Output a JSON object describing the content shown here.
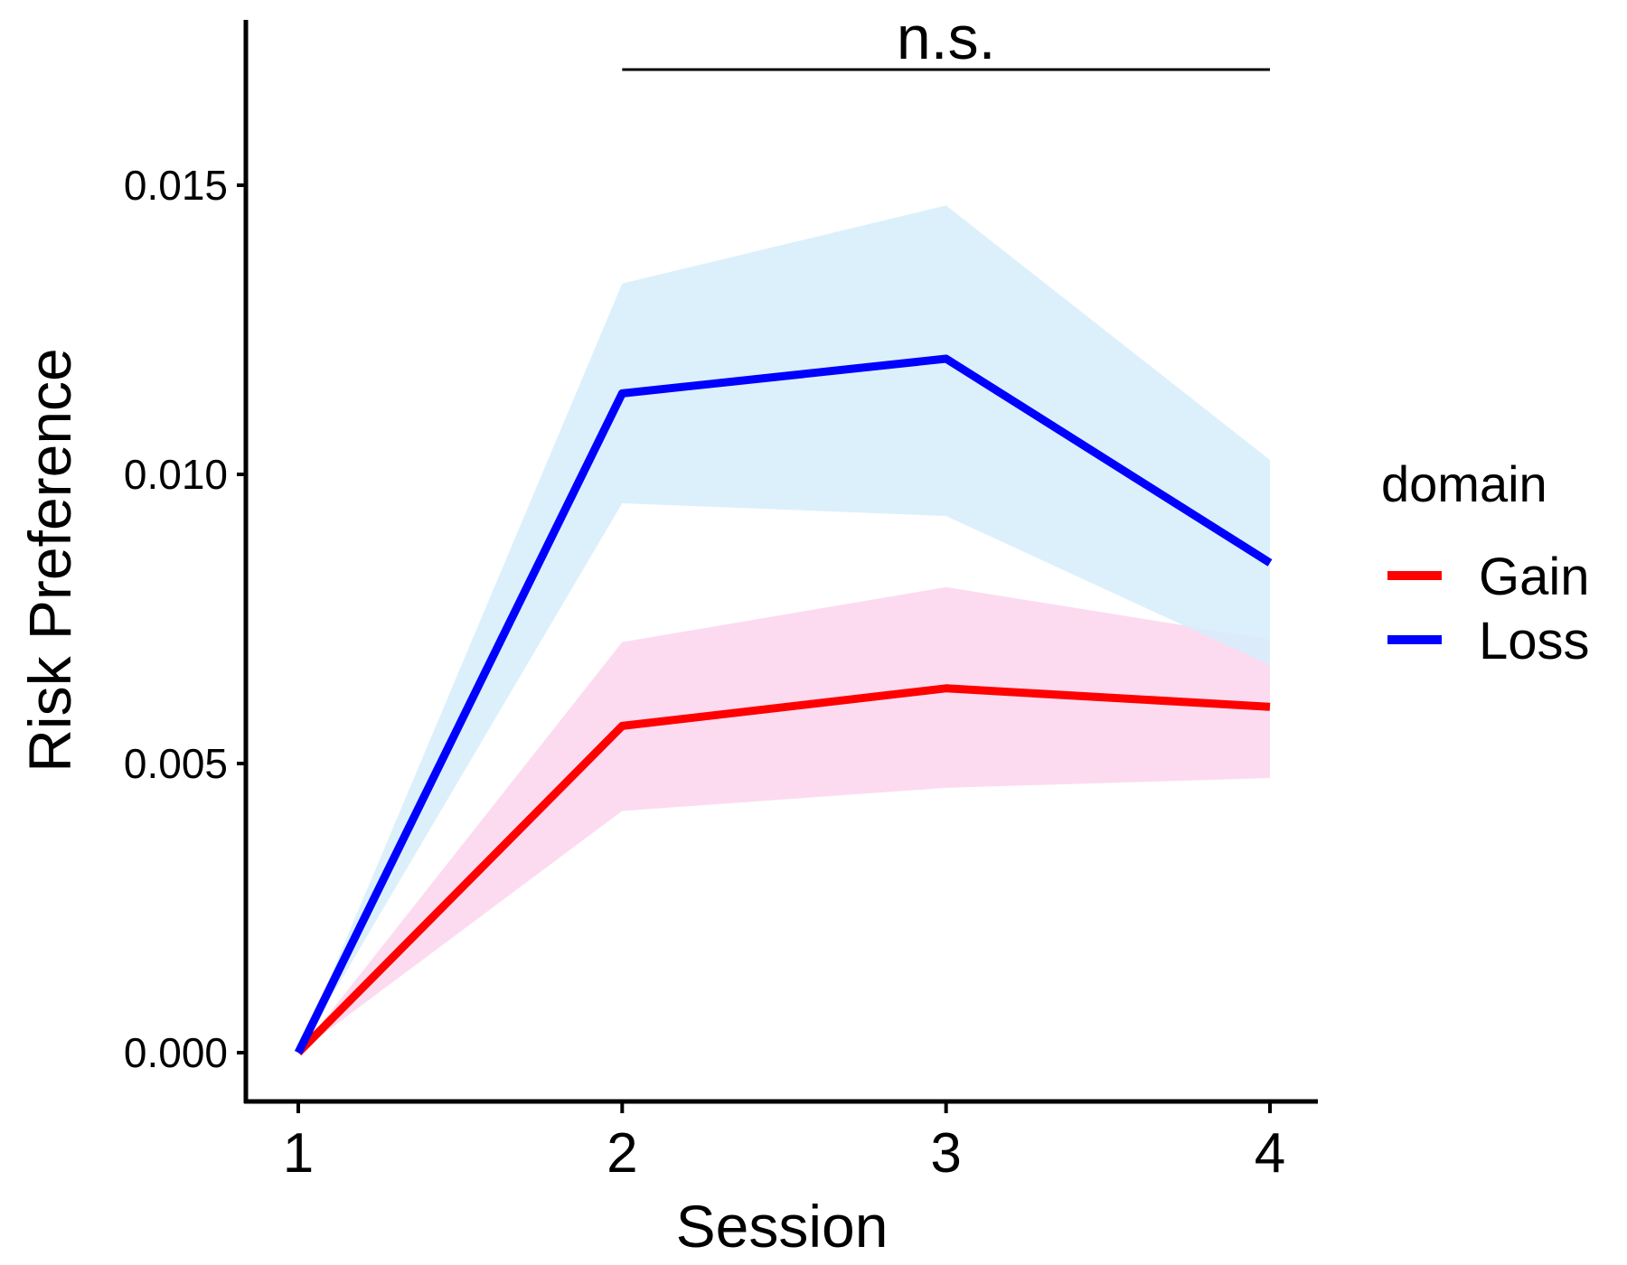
{
  "chart_data": {
    "type": "line",
    "xlabel": "Session",
    "ylabel": "Risk Preference",
    "x": [
      1,
      2,
      3,
      4
    ],
    "xticks": [
      "1",
      "2",
      "3",
      "4"
    ],
    "ylim": [
      -0.0009,
      0.0178
    ],
    "yticks": [
      0.0,
      0.005,
      0.01,
      0.015
    ],
    "ytick_labels": [
      "0.000",
      "0.005",
      "0.010",
      "0.015"
    ],
    "grid": false,
    "legend": {
      "title": "domain",
      "position": "right",
      "entries": [
        "Gain",
        "Loss"
      ]
    },
    "series": [
      {
        "name": "Gain",
        "color": "#ff0000",
        "band_color": "#fcd5ed",
        "values": [
          0.0,
          0.00565,
          0.0063,
          0.00598
        ],
        "lower": [
          0.0,
          0.00418,
          0.00458,
          0.00475
        ],
        "upper": [
          0.0,
          0.0071,
          0.00805,
          0.00715
        ]
      },
      {
        "name": "Loss",
        "color": "#0000ff",
        "band_color": "#d6edfb",
        "values": [
          0.0,
          0.0114,
          0.012,
          0.00847
        ],
        "lower": [
          0.0,
          0.0095,
          0.00928,
          0.0067
        ],
        "upper": [
          0.0,
          0.0133,
          0.01465,
          0.01025
        ]
      }
    ],
    "annotation": {
      "text": "n.s.",
      "x_start": 2,
      "x_end": 4
    }
  }
}
